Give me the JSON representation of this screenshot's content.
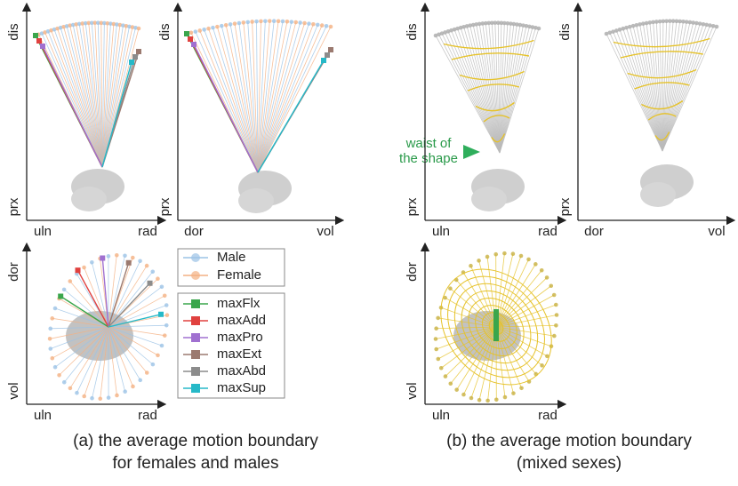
{
  "panels": [
    {
      "y_top": "dis",
      "y_bottom": "prx",
      "x_left": "uln",
      "x_right": "rad"
    },
    {
      "y_top": "dis",
      "y_bottom": "prx",
      "x_left": "dor",
      "x_right": "vol"
    },
    {
      "y_top": "dor",
      "y_bottom": "vol",
      "x_left": "uln",
      "x_right": "rad"
    },
    {
      "y_top": "dis",
      "y_bottom": "prx",
      "x_left": "uln",
      "x_right": "rad"
    },
    {
      "y_top": "dis",
      "y_bottom": "prx",
      "x_left": "dor",
      "x_right": "vol"
    },
    {
      "y_top": "dor",
      "y_bottom": "vol",
      "x_left": "uln",
      "x_right": "rad"
    }
  ],
  "legend": {
    "sexes": [
      {
        "name": "Male",
        "color": "#9cc3e6"
      },
      {
        "name": "Female",
        "color": "#f4b183"
      }
    ],
    "poses": [
      {
        "name": "maxFlx",
        "color": "#3aa64c"
      },
      {
        "name": "maxAdd",
        "color": "#e0413f"
      },
      {
        "name": "maxPro",
        "color": "#a070d0"
      },
      {
        "name": "maxExt",
        "color": "#9b7a70"
      },
      {
        "name": "maxAbd",
        "color": "#8c8c8c"
      },
      {
        "name": "maxSup",
        "color": "#26b9c8"
      }
    ]
  },
  "annotation": [
    "waist of",
    "the shape"
  ],
  "captions": [
    [
      "(a) the average motion boundary",
      "for females and males"
    ],
    [
      "(b) the average motion boundary",
      "(mixed sexes)"
    ]
  ]
}
